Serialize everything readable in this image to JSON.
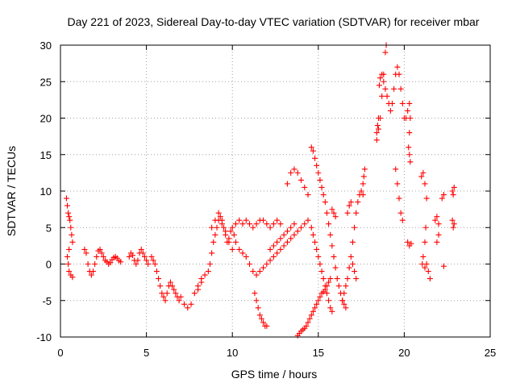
{
  "chart_data": {
    "type": "scatter",
    "title": "Day 221 of 2023, Sidereal Day-to-day VTEC variation (SDTVAR) for receiver mbar",
    "xlabel": "GPS time / hours",
    "ylabel": "SDTVAR / TECUs",
    "xlim": [
      0,
      25
    ],
    "ylim": [
      -10,
      30
    ],
    "xticks": [
      "0",
      "5",
      "10",
      "15",
      "20",
      "25"
    ],
    "yticks": [
      "-10",
      "-5",
      "0",
      "5",
      "10",
      "15",
      "20",
      "25",
      "30"
    ],
    "grid": true,
    "marker": "plus",
    "color": "#ff0000",
    "series": [
      {
        "name": "SDTVAR",
        "points": [
          [
            0.35,
            9
          ],
          [
            0.4,
            8
          ],
          [
            0.45,
            7
          ],
          [
            0.5,
            6.5
          ],
          [
            0.55,
            6
          ],
          [
            0.6,
            5
          ],
          [
            0.65,
            4
          ],
          [
            0.7,
            3
          ],
          [
            0.5,
            2
          ],
          [
            0.4,
            1
          ],
          [
            0.45,
            0
          ],
          [
            0.5,
            -1
          ],
          [
            0.6,
            -1.5
          ],
          [
            0.7,
            -1.8
          ],
          [
            1.4,
            2
          ],
          [
            1.5,
            1.5
          ],
          [
            1.6,
            0
          ],
          [
            1.7,
            -1
          ],
          [
            1.8,
            -1.5
          ],
          [
            1.9,
            -1
          ],
          [
            2.0,
            0
          ],
          [
            2.1,
            1
          ],
          [
            2.2,
            1.8
          ],
          [
            2.3,
            2
          ],
          [
            2.4,
            1.5
          ],
          [
            2.5,
            1
          ],
          [
            2.6,
            0.5
          ],
          [
            2.7,
            0.3
          ],
          [
            2.8,
            0
          ],
          [
            2.9,
            0.2
          ],
          [
            3.0,
            0.6
          ],
          [
            3.1,
            0.9
          ],
          [
            3.2,
            1
          ],
          [
            3.3,
            0.8
          ],
          [
            3.4,
            0.5
          ],
          [
            3.5,
            0.3
          ],
          [
            4.0,
            1
          ],
          [
            4.1,
            1.5
          ],
          [
            4.2,
            1.2
          ],
          [
            4.3,
            0.5
          ],
          [
            4.4,
            0
          ],
          [
            4.5,
            0.5
          ],
          [
            4.6,
            1.5
          ],
          [
            4.7,
            2
          ],
          [
            4.8,
            1.5
          ],
          [
            4.9,
            1
          ],
          [
            5.0,
            0.5
          ],
          [
            5.1,
            0
          ],
          [
            5.3,
            1
          ],
          [
            5.4,
            0.5
          ],
          [
            5.5,
            0
          ],
          [
            5.6,
            -1
          ],
          [
            5.7,
            -2
          ],
          [
            5.8,
            -3
          ],
          [
            5.9,
            -4
          ],
          [
            6.0,
            -4.5
          ],
          [
            6.1,
            -5
          ],
          [
            6.2,
            -4
          ],
          [
            6.3,
            -3
          ],
          [
            6.4,
            -2.5
          ],
          [
            6.5,
            -3
          ],
          [
            6.6,
            -3.5
          ],
          [
            6.7,
            -4
          ],
          [
            6.8,
            -4.5
          ],
          [
            6.9,
            -5
          ],
          [
            7.0,
            -4.5
          ],
          [
            7.2,
            -5.5
          ],
          [
            7.4,
            -6
          ],
          [
            7.6,
            -5.5
          ],
          [
            7.8,
            -4
          ],
          [
            8.0,
            -3
          ],
          [
            8.2,
            -2
          ],
          [
            8.4,
            -1.5
          ],
          [
            8.2,
            -2.5
          ],
          [
            8.0,
            -3.5
          ],
          [
            8.6,
            -1
          ],
          [
            8.7,
            0
          ],
          [
            8.8,
            1.5
          ],
          [
            8.9,
            3
          ],
          [
            9.0,
            4
          ],
          [
            9.1,
            5
          ],
          [
            9.2,
            6
          ],
          [
            9.3,
            6.5
          ],
          [
            9.4,
            6
          ],
          [
            9.5,
            5
          ],
          [
            9.6,
            4
          ],
          [
            9.7,
            3
          ],
          [
            9.8,
            3.5
          ],
          [
            9.9,
            4.5
          ],
          [
            10.0,
            5
          ],
          [
            10.1,
            4
          ],
          [
            10.2,
            3
          ],
          [
            10.4,
            2
          ],
          [
            10.6,
            1.5
          ],
          [
            10.8,
            1
          ],
          [
            11.0,
            0
          ],
          [
            11.2,
            -1
          ],
          [
            11.4,
            -1.5
          ],
          [
            11.6,
            -1
          ],
          [
            11.8,
            -0.5
          ],
          [
            12.0,
            0
          ],
          [
            12.2,
            0.5
          ],
          [
            12.4,
            1
          ],
          [
            12.6,
            1.5
          ],
          [
            12.8,
            2
          ],
          [
            13.0,
            2.5
          ],
          [
            13.2,
            3
          ],
          [
            13.4,
            3.5
          ],
          [
            13.6,
            4
          ],
          [
            13.8,
            4.5
          ],
          [
            14.0,
            5
          ],
          [
            14.2,
            5.5
          ],
          [
            14.4,
            6
          ],
          [
            10.2,
            5.5
          ],
          [
            10.4,
            6
          ],
          [
            10.6,
            5.5
          ],
          [
            10.8,
            6
          ],
          [
            11.0,
            5.5
          ],
          [
            11.2,
            5
          ],
          [
            11.4,
            5.5
          ],
          [
            11.6,
            6
          ],
          [
            11.8,
            6
          ],
          [
            12.0,
            5.5
          ],
          [
            12.2,
            5
          ],
          [
            12.4,
            5.5
          ],
          [
            12.6,
            6
          ],
          [
            12.8,
            5.5
          ],
          [
            11.3,
            -4
          ],
          [
            11.4,
            -5
          ],
          [
            11.5,
            -6
          ],
          [
            11.6,
            -7
          ],
          [
            11.7,
            -7.5
          ],
          [
            11.8,
            -8
          ],
          [
            11.9,
            -8.5
          ],
          [
            12.0,
            -8.5
          ],
          [
            13.2,
            11
          ],
          [
            13.4,
            12.5
          ],
          [
            13.6,
            13
          ],
          [
            13.8,
            12.5
          ],
          [
            14.0,
            11.5
          ],
          [
            14.2,
            10.5
          ],
          [
            14.4,
            9.5
          ],
          [
            13.8,
            -9.8
          ],
          [
            13.9,
            -9.5
          ],
          [
            14.0,
            -9.2
          ],
          [
            14.1,
            -9
          ],
          [
            14.2,
            -8.8
          ],
          [
            14.3,
            -8.5
          ],
          [
            14.4,
            -8
          ],
          [
            14.5,
            -7.5
          ],
          [
            14.6,
            -7
          ],
          [
            14.7,
            -6.5
          ],
          [
            14.8,
            -6
          ],
          [
            14.9,
            -5.5
          ],
          [
            15.0,
            -5
          ],
          [
            15.1,
            -4.5
          ],
          [
            15.2,
            -4
          ],
          [
            15.3,
            -3.8
          ],
          [
            15.4,
            -3.5
          ],
          [
            15.5,
            -3
          ],
          [
            15.6,
            -2.5
          ],
          [
            15.7,
            -2
          ],
          [
            14.6,
            16
          ],
          [
            14.7,
            15.5
          ],
          [
            14.8,
            14.5
          ],
          [
            14.9,
            13.5
          ],
          [
            15.0,
            12.5
          ],
          [
            15.1,
            11.5
          ],
          [
            15.2,
            10.5
          ],
          [
            15.3,
            9.5
          ],
          [
            15.4,
            8.5
          ],
          [
            15.5,
            7
          ],
          [
            15.6,
            5.5
          ],
          [
            15.7,
            4
          ],
          [
            15.8,
            2.5
          ],
          [
            15.9,
            1
          ],
          [
            16.0,
            -0.5
          ],
          [
            16.1,
            -2
          ],
          [
            16.2,
            -3
          ],
          [
            16.3,
            -4
          ],
          [
            16.4,
            -5
          ],
          [
            16.5,
            -5.5
          ],
          [
            16.6,
            -6
          ],
          [
            14.6,
            5
          ],
          [
            14.7,
            4
          ],
          [
            14.8,
            3
          ],
          [
            14.9,
            2
          ],
          [
            15.0,
            1
          ],
          [
            15.1,
            0
          ],
          [
            15.2,
            -1
          ],
          [
            15.3,
            -2
          ],
          [
            15.4,
            -3
          ],
          [
            15.5,
            -4
          ],
          [
            15.6,
            -5
          ],
          [
            15.7,
            -6
          ],
          [
            15.8,
            -6.5
          ],
          [
            15.8,
            7.5
          ],
          [
            15.9,
            7
          ],
          [
            16.0,
            6.5
          ],
          [
            16.4,
            -5
          ],
          [
            16.5,
            -4
          ],
          [
            16.6,
            -3
          ],
          [
            16.7,
            -2
          ],
          [
            16.8,
            -0.5
          ],
          [
            16.9,
            1
          ],
          [
            17.0,
            3
          ],
          [
            17.1,
            5
          ],
          [
            17.2,
            7
          ],
          [
            17.3,
            8.5
          ],
          [
            17.4,
            9.5
          ],
          [
            17.5,
            10
          ],
          [
            17.6,
            9.5
          ],
          [
            16.7,
            7
          ],
          [
            16.8,
            8
          ],
          [
            16.9,
            8.5
          ],
          [
            17.2,
            -2
          ],
          [
            17.1,
            -1
          ],
          [
            17.0,
            0
          ],
          [
            17.7,
            13
          ],
          [
            17.65,
            12
          ],
          [
            17.6,
            11
          ],
          [
            18.4,
            17
          ],
          [
            18.5,
            18.5
          ],
          [
            18.6,
            20
          ],
          [
            18.7,
            23
          ],
          [
            18.8,
            26
          ],
          [
            18.9,
            29
          ],
          [
            18.95,
            30
          ],
          [
            18.5,
            20
          ],
          [
            18.45,
            19
          ],
          [
            18.4,
            18
          ],
          [
            18.9,
            24
          ],
          [
            19.0,
            23
          ],
          [
            19.1,
            22
          ],
          [
            19.2,
            21
          ],
          [
            19.3,
            22
          ],
          [
            19.4,
            24
          ],
          [
            19.5,
            26
          ],
          [
            19.6,
            27
          ],
          [
            19.7,
            26
          ],
          [
            19.8,
            24
          ],
          [
            19.9,
            22
          ],
          [
            20.0,
            20
          ],
          [
            18.8,
            25
          ],
          [
            18.7,
            26
          ],
          [
            18.6,
            25.5
          ],
          [
            18.55,
            24.5
          ],
          [
            19.5,
            13
          ],
          [
            19.6,
            11
          ],
          [
            19.7,
            9
          ],
          [
            19.8,
            7
          ],
          [
            19.9,
            6
          ],
          [
            20.1,
            20
          ],
          [
            20.2,
            21
          ],
          [
            20.3,
            22
          ],
          [
            20.35,
            20
          ],
          [
            20.3,
            18
          ],
          [
            20.25,
            16
          ],
          [
            20.3,
            15
          ],
          [
            20.35,
            14
          ],
          [
            20.2,
            3
          ],
          [
            20.3,
            2.5
          ],
          [
            20.4,
            2.8
          ],
          [
            21.0,
            12
          ],
          [
            21.1,
            12.5
          ],
          [
            21.2,
            11
          ],
          [
            21.3,
            9
          ],
          [
            21.25,
            5
          ],
          [
            21.2,
            3
          ],
          [
            21.1,
            1
          ],
          [
            21.05,
            0
          ],
          [
            21.5,
            -2
          ],
          [
            21.4,
            -1
          ],
          [
            21.3,
            0
          ],
          [
            21.2,
            -0.5
          ],
          [
            21.8,
            6
          ],
          [
            21.9,
            6.5
          ],
          [
            22.0,
            5.5
          ],
          [
            22.0,
            4
          ],
          [
            21.9,
            3
          ],
          [
            22.2,
            9
          ],
          [
            22.3,
            9.5
          ],
          [
            22.3,
            -0.3
          ],
          [
            22.8,
            10
          ],
          [
            22.9,
            10.5
          ],
          [
            22.85,
            9.5
          ],
          [
            22.8,
            6
          ],
          [
            22.9,
            5.5
          ],
          [
            22.85,
            5
          ],
          [
            8.8,
            5
          ],
          [
            9.0,
            6
          ],
          [
            9.2,
            7
          ],
          [
            9.4,
            5.5
          ],
          [
            9.6,
            4.5
          ],
          [
            9.8,
            3
          ],
          [
            10.0,
            2
          ],
          [
            12.2,
            2
          ],
          [
            12.4,
            2.5
          ],
          [
            12.6,
            3
          ],
          [
            12.8,
            3.5
          ],
          [
            13.0,
            4
          ],
          [
            13.2,
            4.5
          ],
          [
            13.4,
            5
          ],
          [
            13.6,
            5.5
          ]
        ]
      }
    ]
  }
}
